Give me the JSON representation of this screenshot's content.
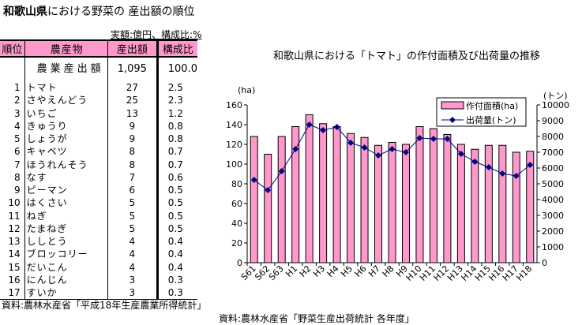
{
  "left": {
    "title_bold": "和歌山県",
    "title_rest": "における野菜の 産出額の順位",
    "unit": "実額:億円、構成比:%",
    "headers": [
      "順位",
      "農産物",
      "産出額",
      "構成比"
    ],
    "total": {
      "name": "農業産出額",
      "value": "1,095",
      "share": "100.0"
    },
    "rows": [
      {
        "rank": "1",
        "name": "トマト",
        "value": "27",
        "share": "2.5"
      },
      {
        "rank": "2",
        "name": "さやえんどう",
        "value": "25",
        "share": "2.3"
      },
      {
        "rank": "3",
        "name": "いちご",
        "value": "13",
        "share": "1.2"
      },
      {
        "rank": "4",
        "name": "きゅうり",
        "value": "9",
        "share": "0.8"
      },
      {
        "rank": "5",
        "name": "しょうが",
        "value": "9",
        "share": "0.8"
      },
      {
        "rank": "6",
        "name": "キャベツ",
        "value": "8",
        "share": "0.7"
      },
      {
        "rank": "7",
        "name": "ほうれんそう",
        "value": "8",
        "share": "0.7"
      },
      {
        "rank": "8",
        "name": "なす",
        "value": "7",
        "share": "0.6"
      },
      {
        "rank": "9",
        "name": "ピーマン",
        "value": "6",
        "share": "0.5"
      },
      {
        "rank": "10",
        "name": "はくさい",
        "value": "5",
        "share": "0.5"
      },
      {
        "rank": "11",
        "name": "ねぎ",
        "value": "5",
        "share": "0.5"
      },
      {
        "rank": "12",
        "name": "たまねぎ",
        "value": "5",
        "share": "0.5"
      },
      {
        "rank": "13",
        "name": "ししとう",
        "value": "4",
        "share": "0.4"
      },
      {
        "rank": "14",
        "name": "ブロッコリー",
        "value": "4",
        "share": "0.4"
      },
      {
        "rank": "15",
        "name": "だいこん",
        "value": "4",
        "share": "0.4"
      },
      {
        "rank": "16",
        "name": "にんじん",
        "value": "3",
        "share": "0.3"
      },
      {
        "rank": "17",
        "name": "すいか",
        "value": "3",
        "share": "0.3"
      }
    ],
    "source": "資料:農林水産省「平成18年生産農業所得統計」"
  },
  "chart_data": {
    "type": "bar",
    "title": "和歌山県における「トマト」の作付面積及び出荷量の推移",
    "categories": [
      "S61",
      "S62",
      "S63",
      "H1",
      "H2",
      "H3",
      "H4",
      "H5",
      "H6",
      "H7",
      "H8",
      "H9",
      "H10",
      "H11",
      "H12",
      "H13",
      "H14",
      "H15",
      "H16",
      "H17",
      "H18"
    ],
    "series": [
      {
        "name": "作付面積(ha)",
        "axis": "left",
        "type": "bar",
        "color": "#ff99cc",
        "values": [
          128,
          110,
          128,
          138,
          150,
          141,
          138,
          131,
          127,
          119,
          122,
          120,
          138,
          136,
          130,
          120,
          115,
          119,
          119,
          112,
          113
        ]
      },
      {
        "name": "出荷量(トン)",
        "axis": "right",
        "type": "line",
        "color": "#000080",
        "values": [
          5250,
          4600,
          5800,
          7200,
          8750,
          8400,
          8600,
          7600,
          7300,
          6800,
          7200,
          7000,
          7900,
          7850,
          7850,
          6900,
          6400,
          6050,
          5650,
          5500,
          6200
        ]
      }
    ],
    "ylabel": "(ha)",
    "y2label": "(トン)",
    "ylim": [
      0,
      160
    ],
    "yticks": [
      0,
      20,
      40,
      60,
      80,
      100,
      120,
      140,
      160
    ],
    "y2lim": [
      0,
      10000
    ],
    "y2ticks": [
      0,
      1000,
      2000,
      3000,
      4000,
      5000,
      6000,
      7000,
      8000,
      9000,
      10000
    ],
    "legend": "top-right",
    "source": "資料:農林水産省「野菜生産出荷統計 各年度」"
  }
}
